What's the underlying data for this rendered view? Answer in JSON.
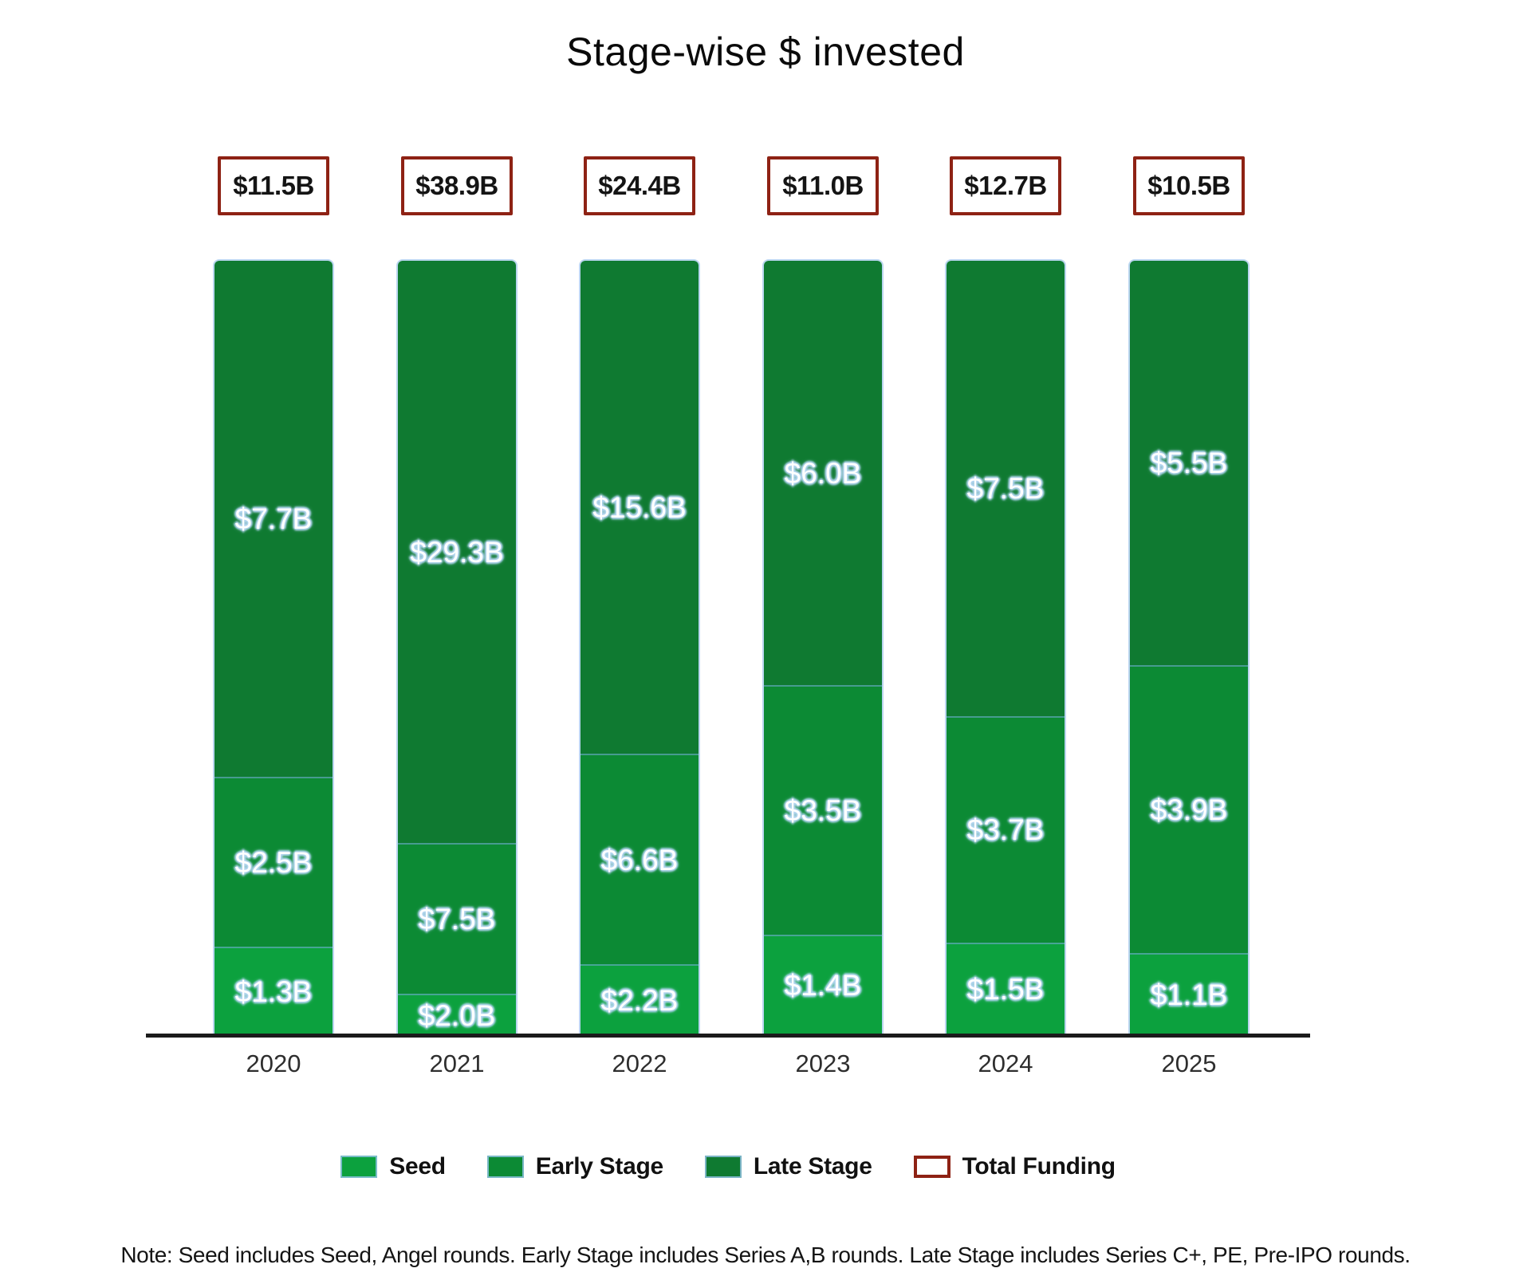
{
  "title": "Stage-wise $ invested",
  "note": "Note: Seed includes Seed, Angel rounds. Early Stage includes Series A,B rounds. Late Stage includes Series C+, PE, Pre-IPO rounds.",
  "colors": {
    "seed": "#0CA13E",
    "early_stage": "#0C8A34",
    "late_stage": "#0F7A31",
    "total_funding_border": "#8E2214",
    "label_halo": "#B5D6F2",
    "axis": "#1B1B1B"
  },
  "legend": [
    {
      "label": "Seed",
      "swatch": "seed"
    },
    {
      "label": "Early Stage",
      "swatch": "early_stage"
    },
    {
      "label": "Late Stage",
      "swatch": "late_stage"
    },
    {
      "label": "Total Funding",
      "swatch": "total_funding"
    }
  ],
  "chart_data": {
    "type": "bar",
    "stacked": "percent",
    "title": "Stage-wise $ invested",
    "unit": "USD billions",
    "grid": false,
    "legend_position": "bottom",
    "bar_render": "every bar drawn full height; segment heights proportional to share of that year's total; absolute values shown as labels",
    "categories": [
      "2020",
      "2021",
      "2022",
      "2023",
      "2024",
      "2025"
    ],
    "series": [
      {
        "name": "Late Stage",
        "values": [
          7.7,
          29.3,
          15.6,
          6.0,
          7.5,
          5.5
        ],
        "labels": [
          "$7.7B",
          "$29.3B",
          "$15.6B",
          "$6.0B",
          "$7.5B",
          "$5.5B"
        ]
      },
      {
        "name": "Early Stage",
        "values": [
          2.5,
          7.5,
          6.6,
          3.5,
          3.7,
          3.9
        ],
        "labels": [
          "$2.5B",
          "$7.5B",
          "$6.6B",
          "$3.5B",
          "$3.7B",
          "$3.9B"
        ]
      },
      {
        "name": "Seed",
        "values": [
          1.3,
          2.0,
          2.2,
          1.4,
          1.5,
          1.1
        ],
        "labels": [
          "$1.3B",
          "$2.0B",
          "$2.2B",
          "$1.4B",
          "$1.5B",
          "$1.1B"
        ]
      }
    ],
    "totals": {
      "name": "Total Funding",
      "values": [
        11.5,
        38.9,
        24.4,
        11.0,
        12.7,
        10.5
      ],
      "labels": [
        "$11.5B",
        "$38.9B",
        "$24.4B",
        "$11.0B",
        "$12.7B",
        "$10.5B"
      ]
    }
  }
}
